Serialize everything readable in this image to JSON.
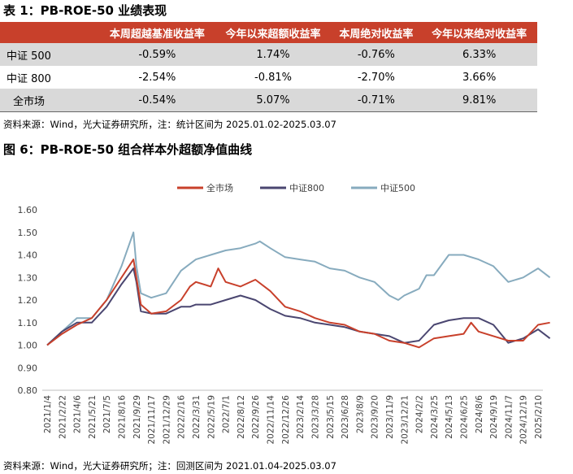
{
  "table_title": "表 1：PB-ROE-50 业绩表现",
  "table": {
    "headers": [
      "",
      "本周超越基准收益率",
      "今年以来超额收益率",
      "本周绝对收益率",
      "今年以来绝对收益率"
    ],
    "rows": [
      [
        "中证 500",
        "-0.59%",
        "1.74%",
        "-0.76%",
        "6.33%"
      ],
      [
        "中证 800",
        "-2.54%",
        "-0.81%",
        "-2.70%",
        "3.66%"
      ],
      [
        "全市场",
        "-0.54%",
        "5.07%",
        "-0.71%",
        "9.81%"
      ]
    ]
  },
  "table_source": "资料来源：Wind，光大证券研究所，注：统计区间为 2025.01.02-2025.03.07",
  "figure_title": "图 6：PB-ROE-50 组合样本外超额净值曲线",
  "figure_source": "资料来源：Wind，光大证券研究所；注：回测区间为 2021.01.04-2025.03.07",
  "chart_data": {
    "type": "line",
    "ylim": [
      0.8,
      1.6
    ],
    "yticks": [
      "0.80",
      "0.90",
      "1.00",
      "1.10",
      "1.20",
      "1.30",
      "1.40",
      "1.50",
      "1.60"
    ],
    "x_ticks": [
      "2021/1/4",
      "2021/2/22",
      "2021/4/6",
      "2021/5/21",
      "2021/7/5",
      "2021/8/16",
      "2021/9/29",
      "2021/11/17",
      "2021/12/29",
      "2022/2/16",
      "2022/3/31",
      "2022/5/19",
      "2022/7/1",
      "2022/8/12",
      "2022/9/26",
      "2022/11/14",
      "2022/12/26",
      "2023/2/14",
      "2023/3/28",
      "2023/5/15",
      "2023/6/28",
      "2023/8/9",
      "2023/9/20",
      "2023/11/9",
      "2023/12/21",
      "2024/2/2",
      "2024/3/25",
      "2024/5/13",
      "2024/6/25",
      "2024/8/6",
      "2024/9/19",
      "2024/11/7",
      "2024/12/19",
      "2025/2/10"
    ],
    "legend_position": "top",
    "colors": {
      "全市场": "#c8402b",
      "中证800": "#4a4670",
      "中证500": "#87abbe"
    },
    "series": [
      {
        "name": "全市场",
        "points": [
          [
            0,
            1.0
          ],
          [
            1,
            1.05
          ],
          [
            2,
            1.09
          ],
          [
            3,
            1.12
          ],
          [
            4,
            1.2
          ],
          [
            5,
            1.3
          ],
          [
            5.8,
            1.38
          ],
          [
            6,
            1.3
          ],
          [
            6.3,
            1.18
          ],
          [
            7,
            1.14
          ],
          [
            8,
            1.15
          ],
          [
            9,
            1.2
          ],
          [
            9.6,
            1.26
          ],
          [
            10,
            1.28
          ],
          [
            11,
            1.26
          ],
          [
            11.5,
            1.34
          ],
          [
            12,
            1.28
          ],
          [
            13,
            1.26
          ],
          [
            14,
            1.29
          ],
          [
            15,
            1.24
          ],
          [
            16,
            1.17
          ],
          [
            17,
            1.15
          ],
          [
            18,
            1.12
          ],
          [
            19,
            1.1
          ],
          [
            20,
            1.09
          ],
          [
            21,
            1.06
          ],
          [
            22,
            1.05
          ],
          [
            23,
            1.02
          ],
          [
            24,
            1.01
          ],
          [
            25,
            0.99
          ],
          [
            26,
            1.03
          ],
          [
            27,
            1.04
          ],
          [
            28,
            1.05
          ],
          [
            28.5,
            1.1
          ],
          [
            29,
            1.06
          ],
          [
            30,
            1.04
          ],
          [
            31,
            1.02
          ],
          [
            32,
            1.02
          ],
          [
            33,
            1.09
          ],
          [
            33.8,
            1.1
          ]
        ]
      },
      {
        "name": "中证800",
        "points": [
          [
            0,
            1.0
          ],
          [
            1,
            1.06
          ],
          [
            2,
            1.1
          ],
          [
            3,
            1.1
          ],
          [
            4,
            1.17
          ],
          [
            5,
            1.27
          ],
          [
            5.8,
            1.34
          ],
          [
            6,
            1.28
          ],
          [
            6.3,
            1.15
          ],
          [
            7,
            1.14
          ],
          [
            8,
            1.14
          ],
          [
            9,
            1.17
          ],
          [
            9.6,
            1.17
          ],
          [
            10,
            1.18
          ],
          [
            11,
            1.18
          ],
          [
            12,
            1.2
          ],
          [
            13,
            1.22
          ],
          [
            14,
            1.2
          ],
          [
            15,
            1.16
          ],
          [
            16,
            1.13
          ],
          [
            17,
            1.12
          ],
          [
            18,
            1.1
          ],
          [
            19,
            1.09
          ],
          [
            20,
            1.08
          ],
          [
            21,
            1.06
          ],
          [
            22,
            1.05
          ],
          [
            23,
            1.04
          ],
          [
            24,
            1.01
          ],
          [
            25,
            1.02
          ],
          [
            26,
            1.09
          ],
          [
            27,
            1.11
          ],
          [
            28,
            1.12
          ],
          [
            29,
            1.12
          ],
          [
            30,
            1.09
          ],
          [
            31,
            1.01
          ],
          [
            32,
            1.03
          ],
          [
            33,
            1.07
          ],
          [
            33.8,
            1.03
          ]
        ]
      },
      {
        "name": "中证500",
        "points": [
          [
            0,
            1.0
          ],
          [
            1,
            1.06
          ],
          [
            2,
            1.12
          ],
          [
            3,
            1.12
          ],
          [
            4,
            1.2
          ],
          [
            5,
            1.35
          ],
          [
            5.8,
            1.5
          ],
          [
            6,
            1.35
          ],
          [
            6.3,
            1.23
          ],
          [
            7,
            1.21
          ],
          [
            8,
            1.23
          ],
          [
            9,
            1.33
          ],
          [
            9.6,
            1.36
          ],
          [
            10,
            1.38
          ],
          [
            11,
            1.4
          ],
          [
            12,
            1.42
          ],
          [
            13,
            1.43
          ],
          [
            14,
            1.45
          ],
          [
            14.3,
            1.46
          ],
          [
            15,
            1.43
          ],
          [
            16,
            1.39
          ],
          [
            17,
            1.38
          ],
          [
            18,
            1.37
          ],
          [
            19,
            1.34
          ],
          [
            20,
            1.33
          ],
          [
            21,
            1.3
          ],
          [
            22,
            1.28
          ],
          [
            23,
            1.22
          ],
          [
            23.6,
            1.2
          ],
          [
            24,
            1.22
          ],
          [
            25,
            1.25
          ],
          [
            25.5,
            1.31
          ],
          [
            26,
            1.31
          ],
          [
            27,
            1.4
          ],
          [
            28,
            1.4
          ],
          [
            29,
            1.38
          ],
          [
            30,
            1.35
          ],
          [
            31,
            1.28
          ],
          [
            32,
            1.3
          ],
          [
            33,
            1.34
          ],
          [
            33.8,
            1.3
          ]
        ]
      }
    ]
  }
}
